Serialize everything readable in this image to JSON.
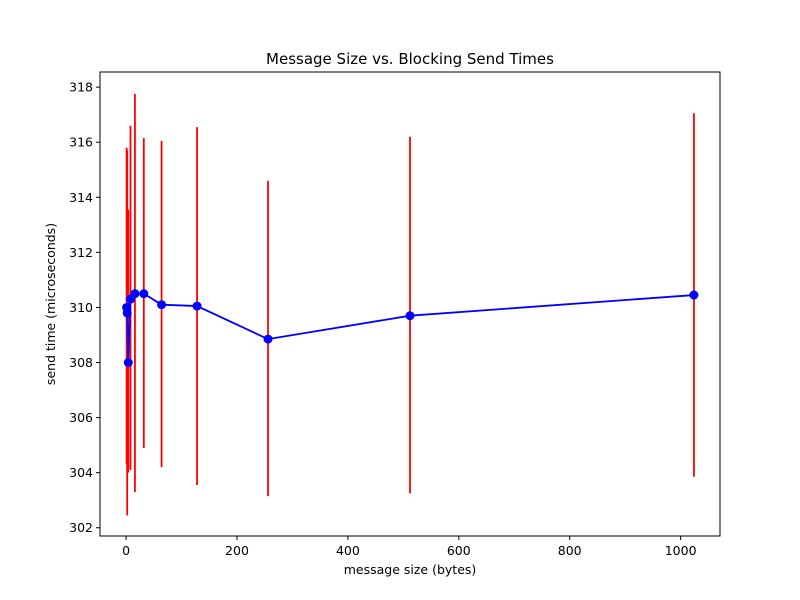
{
  "chart_data": {
    "type": "line",
    "title": "Message Size vs. Blocking Send Times",
    "xlabel": "message size (bytes)",
    "ylabel": "send time (microseconds)",
    "xlim": [
      -47,
      1071
    ],
    "ylim": [
      301.7,
      318.55
    ],
    "x_ticks": [
      0,
      200,
      400,
      600,
      800,
      1000
    ],
    "y_ticks": [
      302,
      304,
      306,
      308,
      310,
      312,
      314,
      316,
      318
    ],
    "grid": false,
    "legend": "none",
    "series": [
      {
        "x": [
          1,
          2,
          4,
          8,
          16,
          32,
          64,
          128,
          256,
          512,
          1024
        ],
        "y": [
          310.0,
          309.8,
          308.0,
          310.3,
          310.5,
          310.5,
          310.1,
          310.05,
          308.85,
          309.7,
          310.45
        ],
        "err_low": [
          304.3,
          302.45,
          304.0,
          304.1,
          303.3,
          304.9,
          304.2,
          303.55,
          303.15,
          303.25,
          303.85
        ],
        "err_high": [
          315.8,
          315.7,
          313.55,
          316.6,
          317.75,
          316.15,
          316.05,
          316.55,
          314.6,
          316.2,
          317.05
        ],
        "color": "#0000ff",
        "err_color": "#ff0000"
      }
    ]
  }
}
